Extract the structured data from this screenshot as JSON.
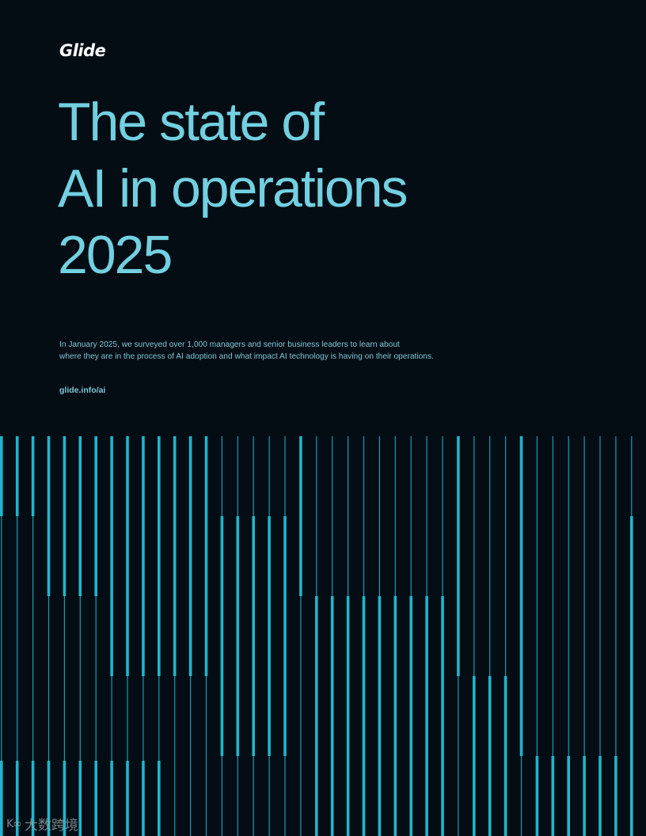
{
  "brand": {
    "logo": "Glide"
  },
  "title": {
    "lines": [
      "The state of",
      "AI in operations",
      "2025"
    ]
  },
  "intro": {
    "lines": [
      "In January 2025, we surveyed over 1,000 managers and senior business leaders to learn about",
      "where they are in the process of AI adoption and what impact AI technology is having on their operations."
    ]
  },
  "link": {
    "url": "glide.info/ai"
  },
  "watermark": {
    "icon": "watermark-logo-icon",
    "text": "大数跨境"
  },
  "colors": {
    "background": "#040d14",
    "title": "#72d0e0",
    "body_text": "#7fc6d6",
    "stripe": "#1fb6cc"
  }
}
